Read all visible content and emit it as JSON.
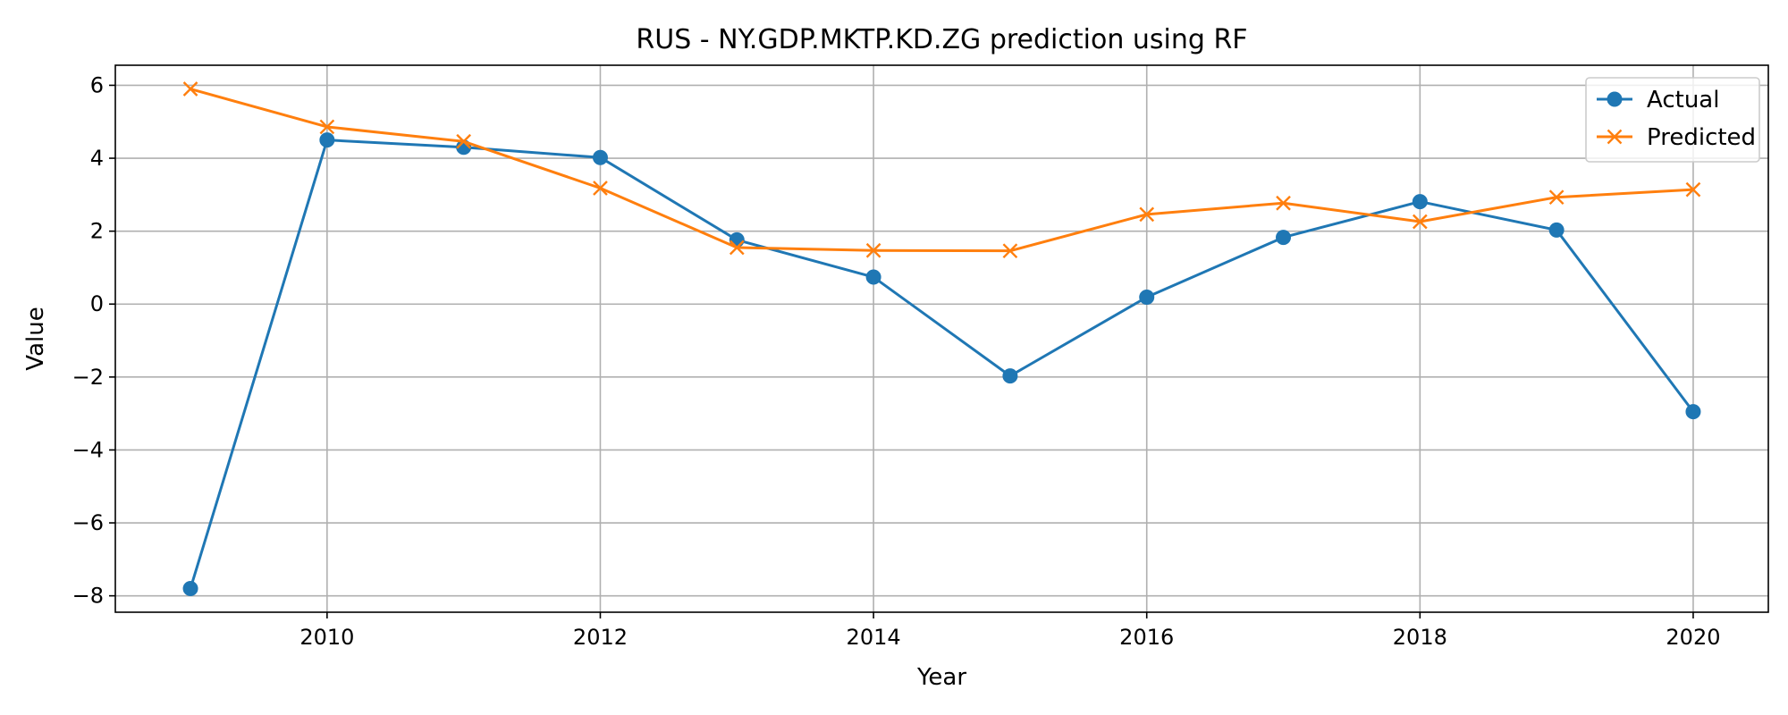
{
  "chart_data": {
    "type": "line",
    "title": "RUS - NY.GDP.MKTP.KD.ZG prediction using RF",
    "xlabel": "Year",
    "ylabel": "Value",
    "x": [
      2009,
      2010,
      2011,
      2012,
      2013,
      2014,
      2015,
      2016,
      2017,
      2018,
      2019,
      2020
    ],
    "xlim": [
      2008.45,
      2020.55
    ],
    "ylim": [
      -8.45,
      6.55
    ],
    "xticks": [
      2010,
      2012,
      2014,
      2016,
      2018,
      2020
    ],
    "yticks": [
      -8,
      -6,
      -4,
      -2,
      0,
      2,
      4,
      6
    ],
    "ytick_labels": [
      "−8",
      "−6",
      "−4",
      "−2",
      "0",
      "2",
      "4",
      "6"
    ],
    "grid": true,
    "legend": "top-right",
    "series": [
      {
        "name": "Actual",
        "marker": "circle",
        "color": "#1f77b4",
        "values": [
          -7.8,
          4.5,
          4.3,
          4.02,
          1.76,
          0.74,
          -1.97,
          0.19,
          1.83,
          2.81,
          2.03,
          -2.95
        ]
      },
      {
        "name": "Predicted",
        "marker": "x",
        "color": "#ff7f0e",
        "values": [
          5.9,
          4.86,
          4.46,
          3.18,
          1.55,
          1.47,
          1.46,
          2.46,
          2.77,
          2.26,
          2.93,
          3.14
        ]
      }
    ]
  }
}
